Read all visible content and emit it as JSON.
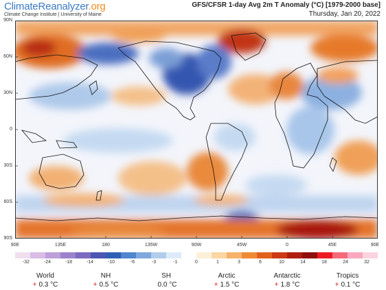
{
  "header": {
    "logo_part1": "ClimateReanalyzer",
    "logo_part2": ".org",
    "subtitle": "Climate Change Institute | University of Maine",
    "title": "GFS/CFSR 1-day Avg 2m T Anomaly (°C) [1979-2000 base]",
    "date": "Thursday, Jan 20, 2022"
  },
  "lat_labels": [
    "90N",
    "60N",
    "30N",
    "0",
    "30S",
    "60S",
    "90S"
  ],
  "lon_labels": [
    "90E",
    "135E",
    "180",
    "135W",
    "90W",
    "45W",
    "0",
    "45E",
    "90E"
  ],
  "colorbar": {
    "labels": [
      "-32",
      "-24",
      "-18",
      "-14",
      "-10",
      "-6",
      "-3",
      "-1",
      "0",
      "1",
      "3",
      "6",
      "10",
      "14",
      "18",
      "24",
      "32"
    ],
    "colors": [
      "#f1dff0",
      "#d9bde4",
      "#bda0da",
      "#9b82cc",
      "#7a6bc0",
      "#4e55b3",
      "#2f5fb5",
      "#4f86cd",
      "#7fa9dc",
      "#b0cdec",
      "#ddebf8",
      "#ffffff",
      "#fdf0d8",
      "#fbd5a2",
      "#f7b26a",
      "#ef8a35",
      "#e2621d",
      "#cc3b14",
      "#b01e10",
      "#8f0f0c",
      "#ec1c24",
      "#f56a7a",
      "#f9a7bf",
      "#fcd3de"
    ]
  },
  "stats": [
    {
      "name": "World",
      "sign": "+",
      "value": "0.3 °C"
    },
    {
      "name": "NH",
      "sign": "+",
      "value": "0.5 °C"
    },
    {
      "name": "SH",
      "sign": "",
      "value": "0.0 °C"
    },
    {
      "name": "Arctic",
      "sign": "+",
      "value": "1.5 °C"
    },
    {
      "name": "Antarctic",
      "sign": "+",
      "value": "1.8 °C"
    },
    {
      "name": "Tropics",
      "sign": "+",
      "value": "0.1 °C"
    }
  ],
  "colors": {
    "ocean_neutral": "#f4f6fb",
    "cold": "#3f63b8",
    "warm": "#e67a2a",
    "hot": "#a81410"
  }
}
